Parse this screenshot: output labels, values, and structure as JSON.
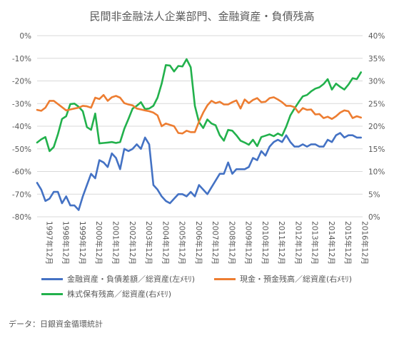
{
  "chart_data": {
    "type": "line",
    "title": "民間非金融法人企業部門、金融資産・負債残高",
    "x_labels": [
      "1997年12月",
      "1998年12月",
      "1999年12月",
      "2000年12月",
      "2001年12月",
      "2002年12月",
      "2003年12月",
      "2004年12月",
      "2005年12月",
      "2006年12月",
      "2007年12月",
      "2008年12月",
      "2009年12月",
      "2010年12月",
      "2011年12月",
      "2012年12月",
      "2013年12月",
      "2014年12月",
      "2015年12月",
      "2016年12月"
    ],
    "x_start": 1997.0,
    "x_step_per_point": 0.25,
    "y_left": {
      "ticks": [
        "0%",
        "-10%",
        "-20%",
        "-30%",
        "-40%",
        "-50%",
        "-60%",
        "-70%",
        "-80%"
      ],
      "min": -80,
      "max": 0
    },
    "y_right": {
      "ticks": [
        "40%",
        "35%",
        "30%",
        "25%",
        "20%",
        "15%",
        "10%",
        "5%",
        "0%"
      ],
      "min": 0,
      "max": 40
    },
    "grid": "horizontal",
    "legend_position": "bottom",
    "series": [
      {
        "name": "金融資産・負債差額／総資産(左ﾒﾓﾘ)",
        "axis": "left",
        "color": "#4472C4",
        "values": [
          -65,
          -68,
          -73,
          -72,
          -69,
          -69,
          -74,
          -71,
          -75,
          -75,
          -77,
          -71,
          -66,
          -61,
          -63,
          -55,
          -56,
          -58,
          -52,
          -54,
          -59,
          -50,
          -51,
          -50,
          -48,
          -50,
          -45,
          -48,
          -66,
          -68,
          -71,
          -73,
          -74,
          -72,
          -70,
          -70,
          -71,
          -69,
          -71,
          -66,
          -68,
          -70,
          -67,
          -64,
          -61,
          -61,
          -56,
          -61,
          -59,
          -59,
          -59,
          -58,
          -54,
          -55,
          -51,
          -53,
          -49,
          -47,
          -46,
          -47,
          -44,
          -47,
          -49,
          -49,
          -48,
          -49,
          -48,
          -48,
          -49,
          -49,
          -46,
          -47,
          -44,
          -43,
          -45,
          -44,
          -44,
          -45,
          -45
        ]
      },
      {
        "name": "現金・預金残高／総資産(右ﾒﾓﾘ)",
        "axis": "right",
        "color": "#ED7D31",
        "values": [
          23.6,
          23.4,
          24.1,
          25.6,
          25.6,
          24.9,
          24.2,
          23.5,
          23.7,
          23.9,
          24.1,
          24.5,
          24.4,
          24.1,
          26.3,
          26.0,
          26.9,
          25.6,
          26.4,
          26.7,
          26.3,
          25.1,
          24.8,
          24.6,
          23.9,
          23.7,
          23.5,
          23.3,
          23.0,
          22.4,
          20.0,
          20.6,
          20.3,
          20.0,
          18.5,
          18.4,
          19.0,
          18.7,
          18.7,
          21.0,
          23.0,
          24.6,
          25.6,
          25.1,
          25.4,
          24.8,
          24.8,
          25.3,
          25.7,
          23.9,
          25.9,
          25.1,
          25.8,
          26.2,
          25.3,
          25.4,
          26.2,
          26.4,
          25.9,
          25.3,
          24.5,
          24.5,
          24.2,
          23.0,
          24.0,
          23.6,
          23.7,
          22.6,
          22.7,
          21.8,
          22.1,
          21.6,
          22.2,
          23.0,
          23.5,
          23.3,
          21.8,
          22.2,
          21.9
        ]
      },
      {
        "name": "株式保有残高／総資産(右ﾒﾓﾘ)",
        "axis": "right",
        "color": "#22B14C",
        "values": [
          16.4,
          17.1,
          17.6,
          14.5,
          15.4,
          18.2,
          21.6,
          22.2,
          24.9,
          25.0,
          24.3,
          23.3,
          19.8,
          19.2,
          22.8,
          16.2,
          16.3,
          16.4,
          16.5,
          16.3,
          16.5,
          19.4,
          21.6,
          23.9,
          24.5,
          25.3,
          23.8,
          23.9,
          24.5,
          26.3,
          29.4,
          33.5,
          33.4,
          32.1,
          33.3,
          33.2,
          34.8,
          33.0,
          24.5,
          20.9,
          19.6,
          21.5,
          20.6,
          20.2,
          18.0,
          16.8,
          19.2,
          19.0,
          18.0,
          16.8,
          16.4,
          15.9,
          17.0,
          15.6,
          17.6,
          17.9,
          18.2,
          17.8,
          18.4,
          17.9,
          19.9,
          22.4,
          23.9,
          25.3,
          26.6,
          26.9,
          27.7,
          28.3,
          28.6,
          29.3,
          30.4,
          28.1,
          29.4,
          28.7,
          28.1,
          29.2,
          30.6,
          30.4,
          31.9
        ]
      }
    ],
    "source": "データ：日銀資金循環統計"
  }
}
